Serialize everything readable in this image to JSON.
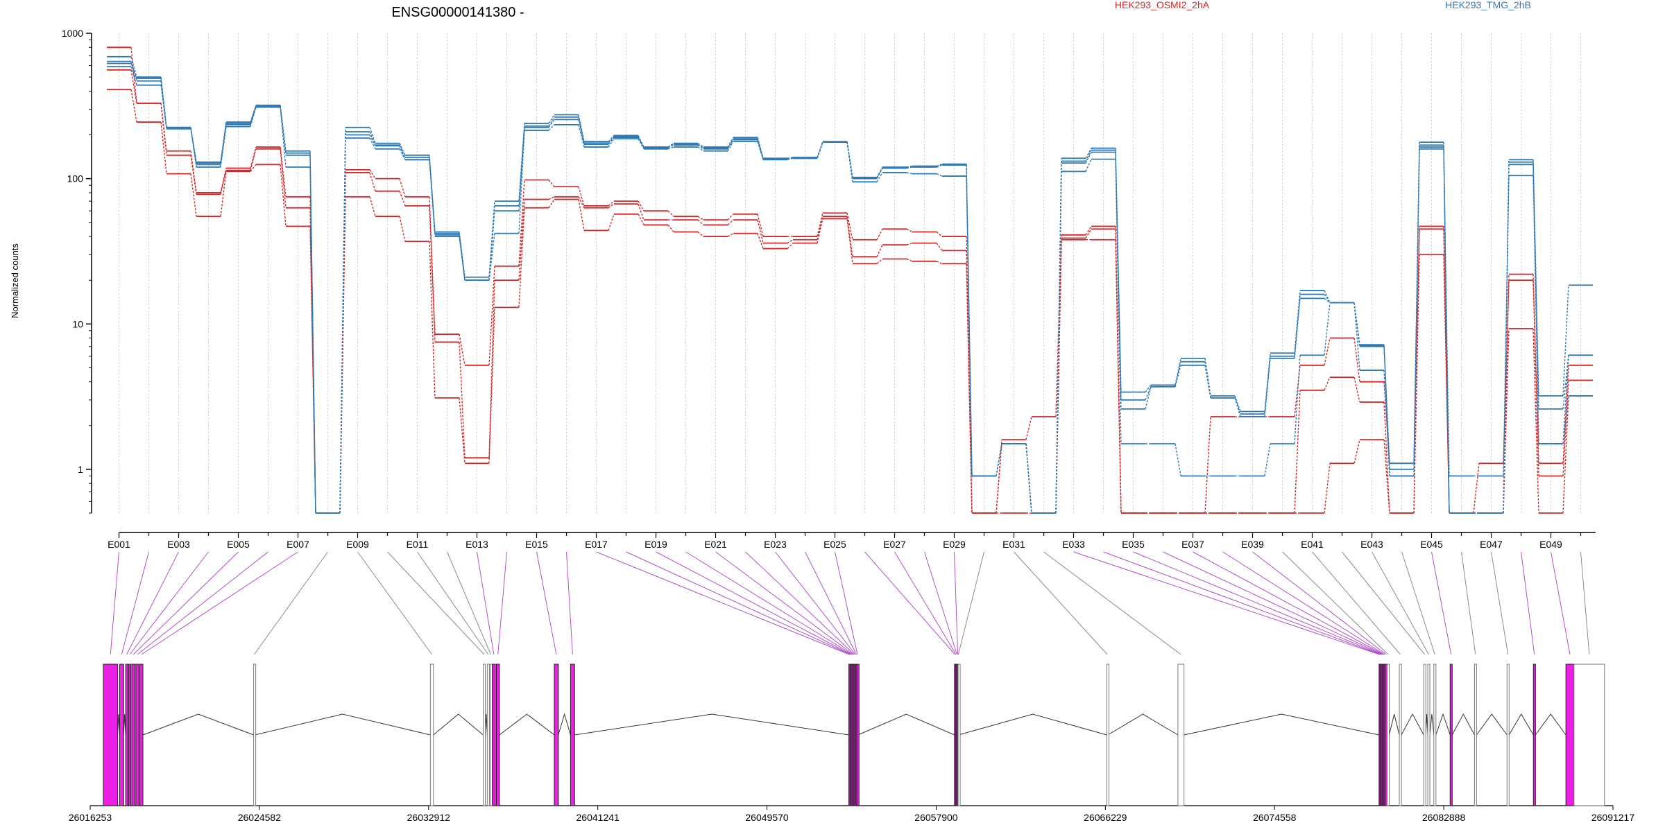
{
  "chart_data": {
    "type": "line",
    "title": "ENSG00000141380 -",
    "ylabel": "Normalized counts",
    "xlabel": "",
    "yscale": "log",
    "ylim": [
      0.5,
      1000
    ],
    "yticks": [
      1,
      10,
      100,
      1000
    ],
    "ytick_labels": [
      "1",
      "10",
      "100",
      "1000"
    ],
    "grid": "vertical dotted lines at each exon",
    "legend_position": "top",
    "legend": [
      {
        "name": "HEK293_OSMI2_2hA",
        "color": "#d62728"
      },
      {
        "name": "HEK293_TMG_2hB",
        "color": "#2f79b5"
      }
    ],
    "exons": [
      "E001",
      "E002",
      "E003",
      "E004",
      "E005",
      "E006",
      "E007",
      "E008",
      "E009",
      "E010",
      "E011",
      "E012",
      "E013",
      "E014",
      "E015",
      "E016",
      "E017",
      "E018",
      "E019",
      "E020",
      "E021",
      "E022",
      "E023",
      "E024",
      "E025",
      "E026",
      "E027",
      "E028",
      "E029",
      "E030",
      "E031",
      "E032",
      "E033",
      "E034",
      "E035",
      "E036",
      "E037",
      "E038",
      "E039",
      "E040",
      "E041",
      "E042",
      "E043",
      "E044",
      "E045",
      "E046",
      "E047",
      "E048",
      "E049",
      "E050"
    ],
    "exon_tick_labels": [
      "E001",
      "E003",
      "E005",
      "E007",
      "E009",
      "E011",
      "E013",
      "E015",
      "E017",
      "E019",
      "E021",
      "E023",
      "E025",
      "E027",
      "E029",
      "E031",
      "E033",
      "E035",
      "E037",
      "E039",
      "E041",
      "E043",
      "E045",
      "E047",
      "E049"
    ],
    "series": [
      {
        "name": "HEK293_OSMI2_2hA",
        "color": "#d62728",
        "values": [
          800,
          330,
          155,
          80,
          118,
          165,
          75,
          0.5,
          115,
          100,
          75,
          8.5,
          5.2,
          25,
          98,
          88,
          65,
          70,
          60,
          55,
          52,
          57,
          40,
          40,
          58,
          38,
          45,
          43,
          40,
          0.5,
          1.6,
          2.3,
          41,
          47,
          0.5,
          0.5,
          0.5,
          2.3,
          2.3,
          2.3,
          5.2,
          8,
          4,
          1.1,
          47,
          0.5,
          0.5,
          22,
          1.1,
          5.2
        ]
      },
      {
        "name": "HEK293_OSMI2_2hA",
        "color": "#d62728",
        "values": [
          560,
          330,
          145,
          78,
          114,
          160,
          63,
          0.5,
          110,
          82,
          65,
          7.5,
          1.2,
          20,
          72,
          75,
          63,
          67,
          52,
          52,
          48,
          52,
          36,
          38,
          55,
          29,
          35,
          36,
          32,
          0.5,
          1.5,
          0.5,
          39,
          45,
          0.5,
          0.5,
          0.5,
          0.5,
          0.5,
          0.5,
          3.5,
          4.3,
          2.9,
          0.5,
          45,
          0.5,
          1.1,
          20,
          0.9,
          4.1
        ]
      },
      {
        "name": "HEK293_OSMI2_2hA",
        "color": "#d62728",
        "values": [
          410,
          245,
          108,
          55,
          112,
          125,
          47,
          0.5,
          75,
          55,
          37,
          3.1,
          1.1,
          13,
          63,
          72,
          44,
          57,
          48,
          43,
          40,
          42,
          33,
          36,
          53,
          26,
          28,
          27,
          26,
          0.5,
          0.5,
          0.5,
          38,
          38,
          0.5,
          0.5,
          0.5,
          0.5,
          0.5,
          0.5,
          0.5,
          1.1,
          1.6,
          0.5,
          30,
          0.5,
          0.5,
          9.3,
          0.5,
          3.2
        ]
      },
      {
        "name": "HEK293_TMG_2hB",
        "color": "#2f79b5",
        "values": [
          690,
          500,
          225,
          130,
          245,
          320,
          155,
          0.5,
          225,
          175,
          145,
          43,
          21,
          70,
          240,
          275,
          180,
          198,
          165,
          175,
          165,
          192,
          138,
          140,
          180,
          102,
          120,
          122,
          126,
          0.9,
          1.5,
          0.5,
          138,
          162,
          3.4,
          3.8,
          5.8,
          3.2,
          2.5,
          6.3,
          17,
          14,
          7.2,
          1.1,
          178,
          0.5,
          0.5,
          135,
          3.2,
          18.5
        ]
      },
      {
        "name": "HEK293_TMG_2hB",
        "color": "#2f79b5",
        "values": [
          620,
          490,
          220,
          125,
          235,
          315,
          145,
          0.5,
          200,
          168,
          135,
          41,
          20,
          60,
          225,
          255,
          172,
          192,
          163,
          170,
          160,
          185,
          137,
          138,
          178,
          100,
          118,
          120,
          124,
          0.9,
          1.5,
          0.5,
          128,
          152,
          2.6,
          3.7,
          5.2,
          3.1,
          2.3,
          5.8,
          15,
          14,
          7,
          0.9,
          165,
          0.5,
          0.5,
          125,
          1.5,
          6.1
        ]
      },
      {
        "name": "HEK293_TMG_2hB",
        "color": "#2f79b5",
        "values": [
          590,
          440,
          225,
          120,
          228,
          310,
          120,
          0.5,
          190,
          160,
          135,
          40,
          20,
          42,
          215,
          235,
          165,
          188,
          160,
          165,
          155,
          180,
          135,
          138,
          178,
          95,
          110,
          108,
          104,
          0.9,
          1.5,
          0.5,
          112,
          136,
          1.5,
          1.5,
          0.9,
          0.9,
          0.9,
          1.5,
          6.1,
          14,
          4.8,
          0.9,
          160,
          0.9,
          0.9,
          105,
          1.5,
          3.2
        ]
      },
      {
        "name": "HEK293_TMG_2hB",
        "color": "#2f79b5",
        "values": [
          640,
          470,
          222,
          128,
          240,
          318,
          150,
          0.5,
          210,
          170,
          140,
          42,
          20,
          65,
          230,
          265,
          176,
          195,
          164,
          172,
          162,
          188,
          137,
          139,
          179,
          101,
          119,
          121,
          125,
          0.9,
          1.5,
          0.5,
          132,
          157,
          3.0,
          3.7,
          5.5,
          3.1,
          2.4,
          6.0,
          16,
          14,
          7.1,
          1.0,
          170,
          0.5,
          0.5,
          130,
          2.6,
          6.1
        ]
      }
    ],
    "genomic_start": 26016253,
    "genomic_end": 26091217,
    "genomic_tick_labels": [
      "26016253",
      "26024582",
      "26032912",
      "26041241",
      "26049570",
      "26057900",
      "26066229",
      "26074558",
      "26082888",
      "26091217"
    ],
    "genomic_ticks": [
      26016253,
      26024582,
      26032912,
      26041241,
      26049570,
      26057900,
      26066229,
      26074558,
      26082888,
      26091217
    ],
    "exon_genomic_pos": [
      26016900,
      26017700,
      26018000,
      26018150,
      26018300,
      26018500,
      26018700,
      26024300,
      26033000,
      26035600,
      26035800,
      26035950,
      26036050,
      26036250,
      26039100,
      26039900,
      26053600,
      26053650,
      26053700,
      26053750,
      26053800,
      26053850,
      26053900,
      26053950,
      26054000,
      26058800,
      26058850,
      26058900,
      26058950,
      26058980,
      26066300,
      26069800,
      26079700,
      26079750,
      26079800,
      26079850,
      26079900,
      26079950,
      26080000,
      26080100,
      26080700,
      26081900,
      26082100,
      26082400,
      26083200,
      26084400,
      26086000,
      26087300,
      26088900,
      26089300
    ],
    "exon_genomic_end": [
      26017600,
      26017900,
      26018100,
      26018250,
      26018450,
      26018650,
      26018850,
      26024350,
      26033150,
      26035700,
      26035900,
      26036000,
      26036200,
      26036400,
      26039300,
      26040100,
      26053650,
      26053700,
      26053750,
      26053800,
      26053850,
      26053900,
      26053950,
      26054000,
      26054050,
      26058850,
      26058900,
      26058950,
      26058980,
      26059000,
      26066350,
      26070100,
      26079750,
      26079800,
      26079850,
      26079900,
      26079950,
      26080000,
      26080100,
      26080200,
      26080800,
      26082000,
      26082200,
      26082500,
      26083300,
      26084500,
      26086100,
      26087400,
      26089300,
      26090800
    ],
    "highlighted_exons": [
      "E001",
      "E002",
      "E003",
      "E004",
      "E005",
      "E006",
      "E007",
      "E013",
      "E014",
      "E015",
      "E016",
      "E017",
      "E018",
      "E019",
      "E020",
      "E021",
      "E022",
      "E023",
      "E024",
      "E025",
      "E026",
      "E027",
      "E028",
      "E029",
      "E033",
      "E034",
      "E035",
      "E036",
      "E037",
      "E038",
      "E039",
      "E045",
      "E048",
      "E049"
    ],
    "highlight_color": "#ee1fe4",
    "grey_color": "#b0b0b0"
  }
}
